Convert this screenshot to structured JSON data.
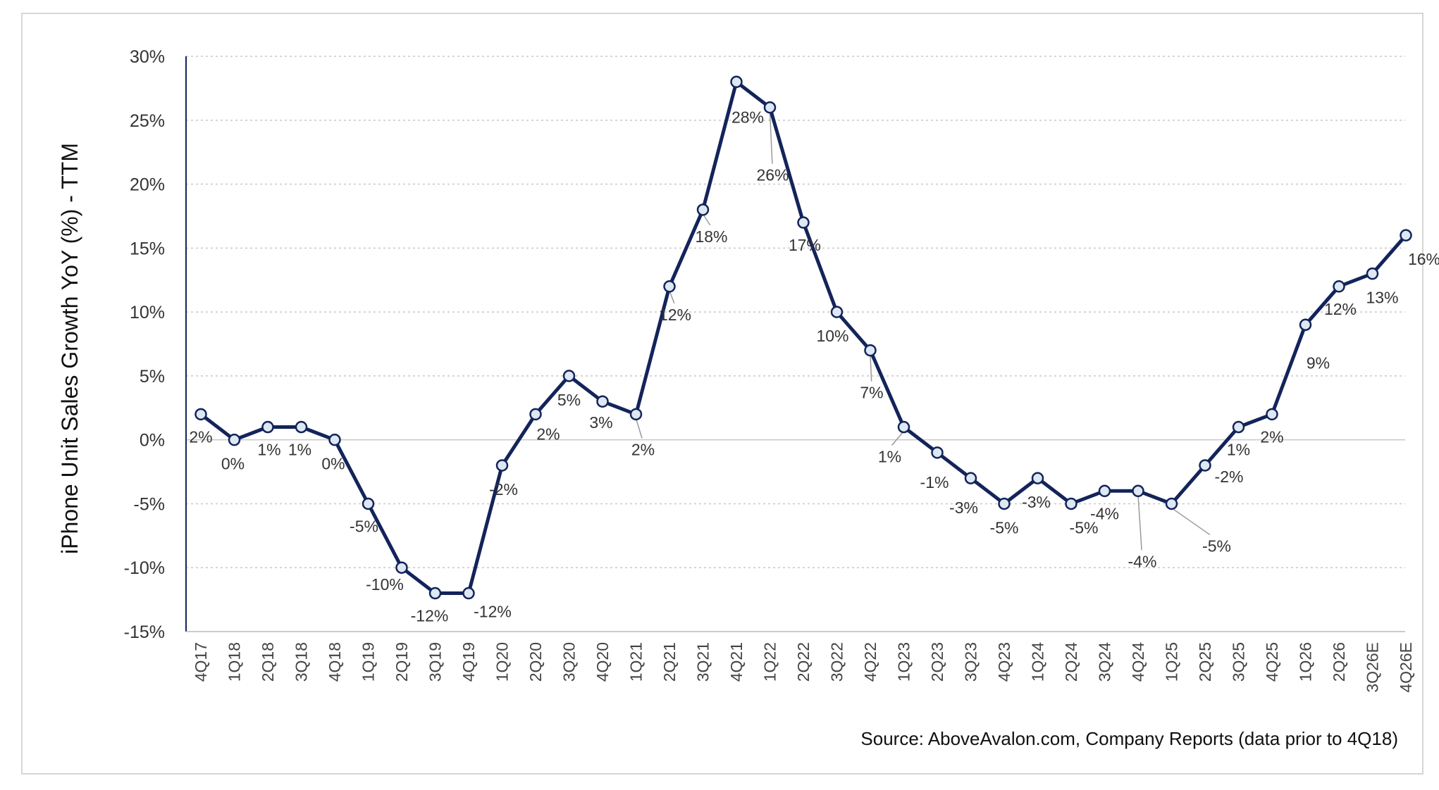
{
  "chart_data": {
    "type": "line",
    "title": "",
    "xlabel": "",
    "ylabel": "iPhone Unit Sales Growth YoY (%) - TTM",
    "source": "Source: AboveAvalon.com, Company Reports (data prior to 4Q18)",
    "categories": [
      "4Q17",
      "1Q18",
      "2Q18",
      "3Q18",
      "4Q18",
      "1Q19",
      "2Q19",
      "3Q19",
      "4Q19",
      "1Q20",
      "2Q20",
      "3Q20",
      "4Q20",
      "1Q21",
      "2Q21",
      "3Q21",
      "4Q21",
      "1Q22",
      "2Q22",
      "3Q22",
      "4Q22",
      "1Q23",
      "2Q23",
      "3Q23",
      "4Q23",
      "1Q24",
      "2Q24",
      "3Q24",
      "4Q24",
      "1Q25",
      "2Q25",
      "3Q25",
      "4Q25",
      "1Q26",
      "2Q26",
      "3Q26E",
      "4Q26E"
    ],
    "series": [
      {
        "values": [
          2,
          0,
          1,
          1,
          0,
          -5,
          -10,
          -12,
          -12,
          -2,
          2,
          5,
          3,
          2,
          12,
          18,
          28,
          26,
          17,
          10,
          7,
          1,
          -1,
          -3,
          -5,
          -3,
          -5,
          -4,
          -4,
          -5,
          -2,
          1,
          2,
          9,
          12,
          13,
          16
        ]
      }
    ],
    "data_labels": [
      "2%",
      "0%",
      "1%",
      "1%",
      "0%",
      "-5%",
      "-10%",
      "-12%",
      "-12%",
      "-2%",
      "2%",
      "5%",
      "3%",
      "2%",
      "12%",
      "18%",
      "28%",
      "26%",
      "17%",
      "10%",
      "7%",
      "1%",
      "-1%",
      "-3%",
      "-5%",
      "-3%",
      "-5%",
      "-4%",
      "-4%",
      "-5%",
      "-2%",
      "1%",
      "2%",
      "9%",
      "12%",
      "13%",
      "16%"
    ],
    "y_ticks": [
      30,
      25,
      20,
      15,
      10,
      5,
      0,
      -5,
      -10,
      -15
    ],
    "y_tick_labels": [
      "30%",
      "25%",
      "20%",
      "15%",
      "10%",
      "5%",
      "0%",
      "-5%",
      "-10%",
      "-15%"
    ],
    "ylim": [
      -15,
      30
    ],
    "grid": true,
    "legend": "none",
    "colors": {
      "line": "#13245a",
      "marker_fill": "#dde8f3",
      "grid": "#c8c8c8",
      "leader": "#9a9a9a"
    }
  }
}
